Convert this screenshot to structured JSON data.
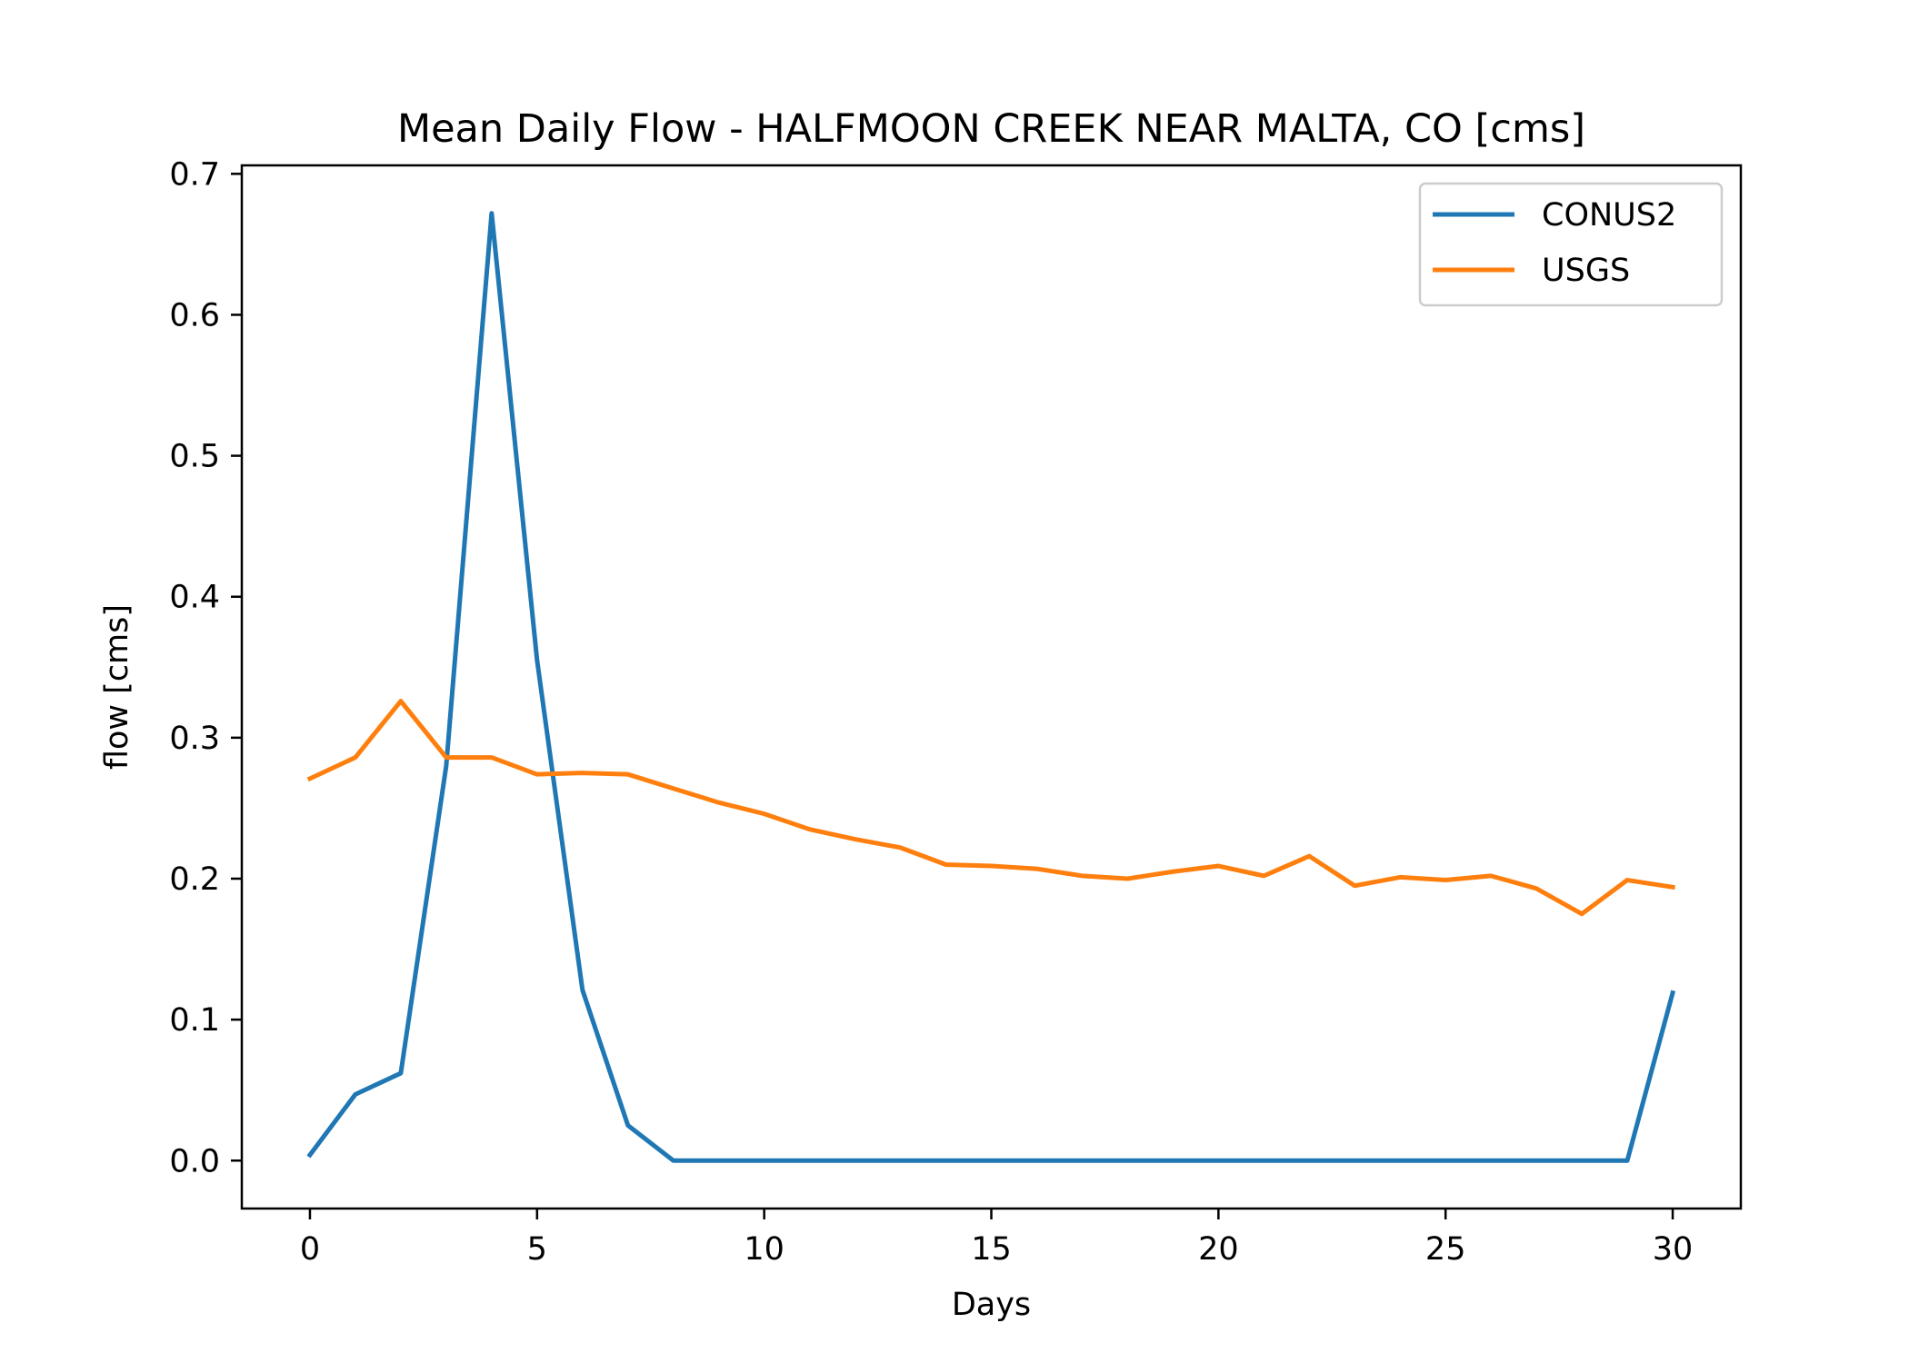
{
  "chart_data": {
    "type": "line",
    "title": "Mean Daily Flow - HALFMOON CREEK NEAR MALTA, CO [cms]",
    "xlabel": "Days",
    "ylabel": "flow [cms]",
    "xlim": [
      -1.5,
      31.5
    ],
    "ylim": [
      -0.034,
      0.706
    ],
    "xticks": [
      0,
      5,
      10,
      15,
      20,
      25,
      30
    ],
    "yticks": [
      0.0,
      0.1,
      0.2,
      0.3,
      0.4,
      0.5,
      0.6,
      0.7
    ],
    "xtick_labels": [
      "0",
      "5",
      "10",
      "15",
      "20",
      "25",
      "30"
    ],
    "ytick_labels": [
      "0.0",
      "0.1",
      "0.2",
      "0.3",
      "0.4",
      "0.5",
      "0.6",
      "0.7"
    ],
    "grid": false,
    "legend_position": "top-right",
    "x": [
      0,
      1,
      2,
      3,
      4,
      5,
      6,
      7,
      8,
      9,
      10,
      11,
      12,
      13,
      14,
      15,
      16,
      17,
      18,
      19,
      20,
      21,
      22,
      23,
      24,
      25,
      26,
      27,
      28,
      29,
      30
    ],
    "series": [
      {
        "name": "CONUS2",
        "color": "#1f77b4",
        "values": [
          0.004,
          0.047,
          0.062,
          0.28,
          0.672,
          0.355,
          0.121,
          0.025,
          0.0,
          0.0,
          0.0,
          0.0,
          0.0,
          0.0,
          0.0,
          0.0,
          0.0,
          0.0,
          0.0,
          0.0,
          0.0,
          0.0,
          0.0,
          0.0,
          0.0,
          0.0,
          0.0,
          0.0,
          0.0,
          0.0,
          0.119
        ]
      },
      {
        "name": "USGS",
        "color": "#ff7f0e",
        "values": [
          0.271,
          0.286,
          0.326,
          0.286,
          0.286,
          0.274,
          0.275,
          0.274,
          0.264,
          0.254,
          0.246,
          0.235,
          0.228,
          0.222,
          0.21,
          0.209,
          0.207,
          0.202,
          0.2,
          0.205,
          0.209,
          0.202,
          0.216,
          0.195,
          0.201,
          0.199,
          0.202,
          0.193,
          0.175,
          0.199,
          0.194
        ]
      }
    ]
  }
}
